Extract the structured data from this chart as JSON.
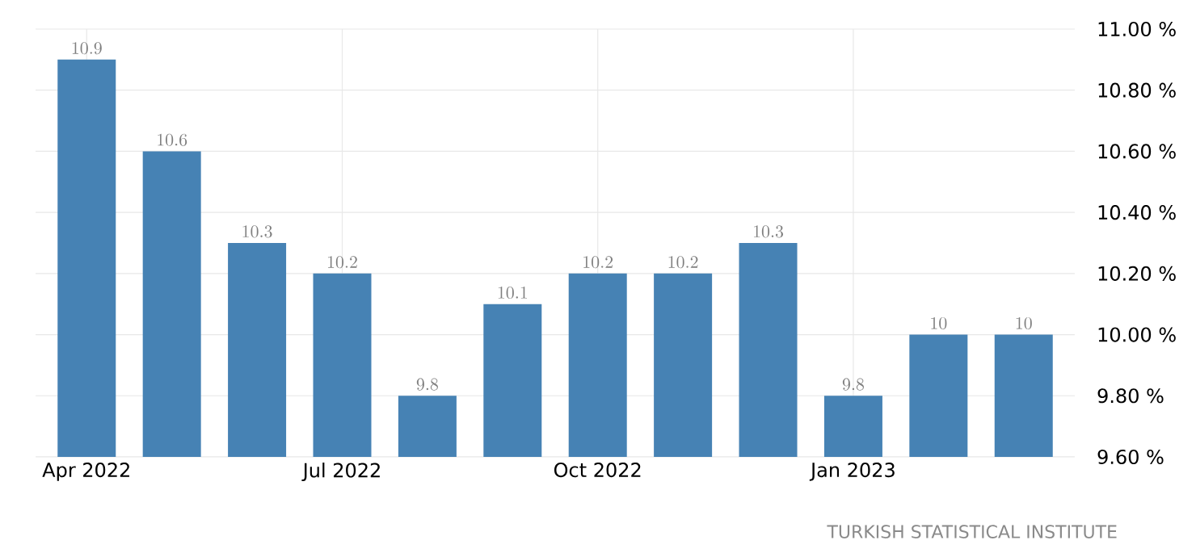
{
  "chart_data": {
    "type": "bar",
    "categories": [
      "Apr 2022",
      null,
      null,
      "Jul 2022",
      null,
      null,
      "Oct 2022",
      null,
      null,
      "Jan 2023",
      null,
      null
    ],
    "values": [
      10.9,
      10.6,
      10.3,
      10.2,
      9.8,
      10.1,
      10.2,
      10.2,
      10.3,
      9.8,
      10,
      10
    ],
    "color": "#4682b4",
    "ylim": [
      9.6,
      11.0
    ],
    "yticks": [
      {
        "value": 9.6,
        "label": "9.60 %"
      },
      {
        "value": 9.8,
        "label": "9.80 %"
      },
      {
        "value": 10.0,
        "label": "10.00 %"
      },
      {
        "value": 10.2,
        "label": "10.20 %"
      },
      {
        "value": 10.4,
        "label": "10.40 %"
      },
      {
        "value": 10.6,
        "label": "10.60 %"
      },
      {
        "value": 10.8,
        "label": "10.80 %"
      },
      {
        "value": 11.0,
        "label": "11.00 %"
      }
    ],
    "grid": true,
    "data_labels": true,
    "annotations": [
      "TURKISH STATISTICAL INSTITUTE"
    ]
  }
}
